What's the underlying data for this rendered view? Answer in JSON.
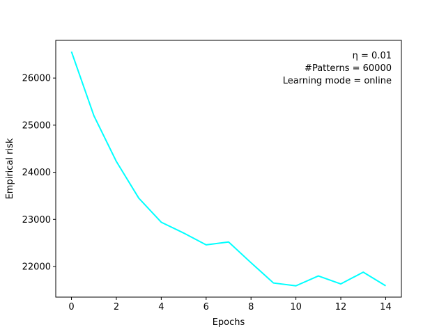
{
  "chart_data": {
    "type": "line",
    "xlabel": "Epochs",
    "ylabel": "Empirical risk",
    "xlim": [
      -0.7,
      14.7
    ],
    "ylim": [
      21350,
      26800
    ],
    "xticks": [
      0,
      2,
      4,
      6,
      8,
      10,
      12,
      14
    ],
    "yticks": [
      22000,
      23000,
      24000,
      25000,
      26000
    ],
    "grid": false,
    "legend": "none",
    "annotations": [
      "η = 0.01",
      "#Patterns = 60000",
      "Learning mode = online"
    ],
    "annotation_placement": "top-right",
    "series": [
      {
        "color": "#00FFFF",
        "x": [
          0,
          1,
          2,
          3,
          4,
          5,
          6,
          7,
          8,
          9,
          10,
          11,
          12,
          13,
          14
        ],
        "y": [
          26560,
          25200,
          24230,
          23450,
          22940,
          22710,
          22460,
          22520,
          22080,
          21650,
          21590,
          21800,
          21630,
          21880,
          21590
        ]
      }
    ]
  }
}
